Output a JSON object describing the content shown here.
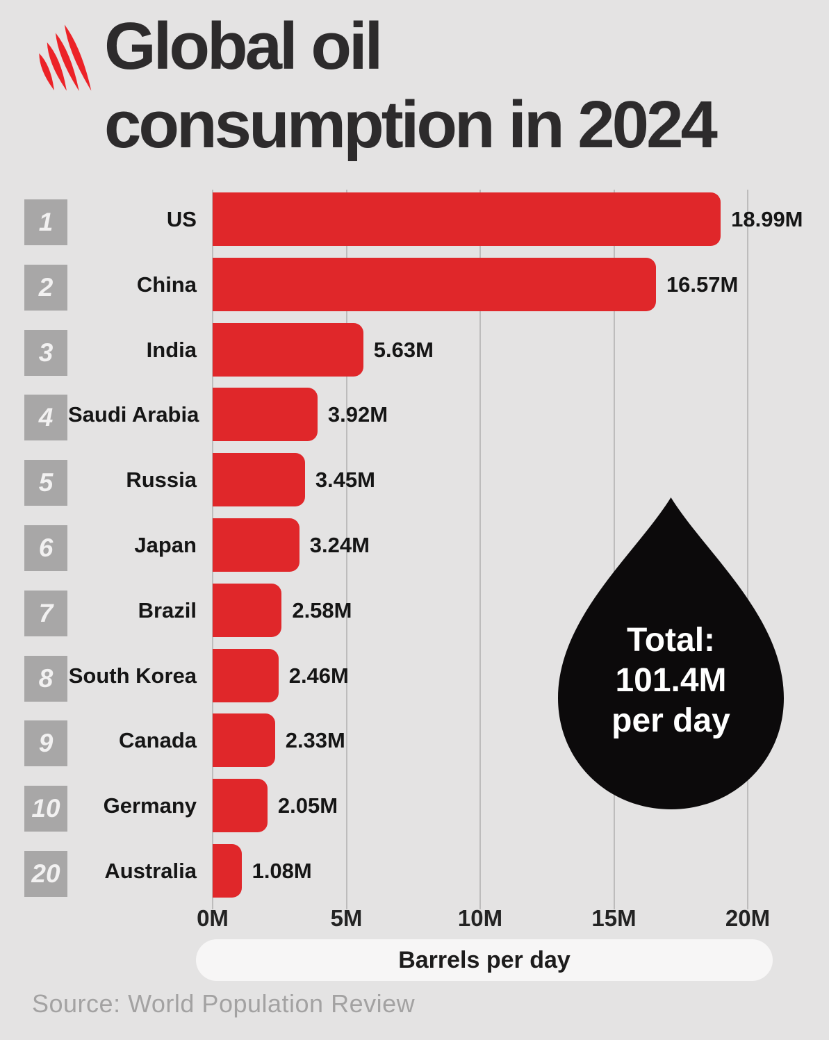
{
  "header": {
    "title_lines": [
      "Global oil",
      "consumption in 2024"
    ]
  },
  "chart_data": {
    "type": "bar",
    "orientation": "horizontal",
    "title": "Global oil consumption in 2024",
    "xlabel": "Barrels per day",
    "xlim": [
      0,
      20
    ],
    "grid": true,
    "x_tick_values": [
      0,
      5,
      10,
      15,
      20
    ],
    "x_tick_labels": [
      "0M",
      "5M",
      "10M",
      "15M",
      "20M"
    ],
    "rows": [
      {
        "rank": "1",
        "country": "US",
        "value": 18.99,
        "value_label": "18.99M"
      },
      {
        "rank": "2",
        "country": "China",
        "value": 16.57,
        "value_label": "16.57M"
      },
      {
        "rank": "3",
        "country": "India",
        "value": 5.63,
        "value_label": "5.63M"
      },
      {
        "rank": "4",
        "country": "Saudi Arabia",
        "value": 3.92,
        "value_label": "3.92M"
      },
      {
        "rank": "5",
        "country": "Russia",
        "value": 3.45,
        "value_label": "3.45M"
      },
      {
        "rank": "6",
        "country": "Japan",
        "value": 3.24,
        "value_label": "3.24M"
      },
      {
        "rank": "7",
        "country": "Brazil",
        "value": 2.58,
        "value_label": "2.58M"
      },
      {
        "rank": "8",
        "country": "South Korea",
        "value": 2.46,
        "value_label": "2.46M"
      },
      {
        "rank": "9",
        "country": "Canada",
        "value": 2.33,
        "value_label": "2.33M"
      },
      {
        "rank": "10",
        "country": "Germany",
        "value": 2.05,
        "value_label": "2.05M"
      },
      {
        "rank": "20",
        "country": "Australia",
        "value": 1.08,
        "value_label": "1.08M"
      }
    ],
    "total_badge": {
      "lines": [
        "Total:",
        "101.4M",
        "per day"
      ]
    },
    "source": "Source: World Population Review"
  },
  "colors": {
    "background": "#e4e3e3",
    "bar": "#e0272a",
    "logo_red": "#ec2227",
    "title_text": "#2d2b2c",
    "label_text": "#151515",
    "rank_box": "#a8a7a7",
    "rank_text": "#f2f1f1",
    "gridline": "#bdbcbc",
    "oil_drop": "#0c0a0b",
    "pill_background": "#f7f6f6",
    "source_text": "#a3a2a2"
  }
}
